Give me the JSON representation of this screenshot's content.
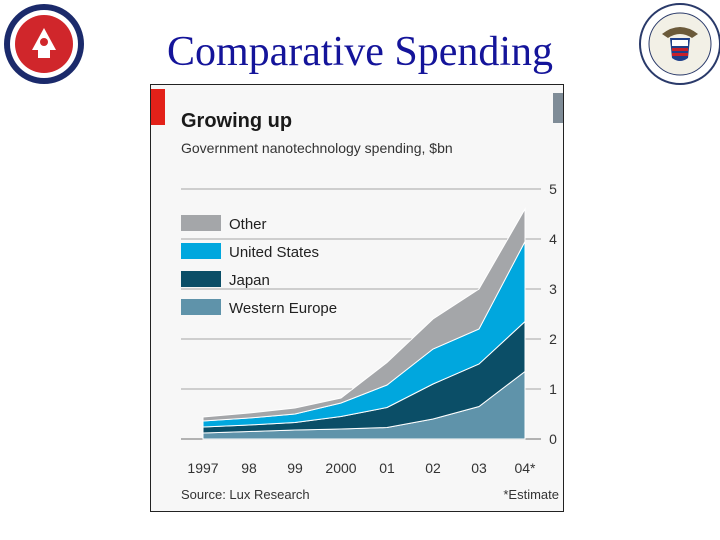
{
  "slide": {
    "title": "Comparative Spending"
  },
  "logos": {
    "left_seal": "Office of the Assistant Secretary of the Army",
    "right_seal": "Army Environmental Policy Institute"
  },
  "colors": {
    "title": "#14149a",
    "accent_bar": "#e32119",
    "badge": "#7f8c97",
    "other": "#a4a6a9",
    "united_states": "#00a7de",
    "japan": "#0b4e67",
    "western_europe": "#5f93aa",
    "grid": "#888888"
  },
  "chart_data": {
    "type": "area",
    "stacked": true,
    "title": "Growing up",
    "subtitle": "Government nanotechnology spending, $bn",
    "badge": "2",
    "categories": [
      "1997",
      "98",
      "99",
      "2000",
      "01",
      "02",
      "03",
      "04*"
    ],
    "series": [
      {
        "name": "Western Europe",
        "color_key": "western_europe",
        "values": [
          0.12,
          0.15,
          0.18,
          0.2,
          0.23,
          0.4,
          0.65,
          1.35
        ]
      },
      {
        "name": "Japan",
        "color_key": "japan",
        "values": [
          0.12,
          0.13,
          0.15,
          0.25,
          0.4,
          0.7,
          0.85,
          1.0
        ]
      },
      {
        "name": "United States",
        "color_key": "united_states",
        "values": [
          0.12,
          0.14,
          0.17,
          0.27,
          0.45,
          0.7,
          0.7,
          1.6
        ]
      },
      {
        "name": "Other",
        "color_key": "other",
        "values": [
          0.08,
          0.1,
          0.12,
          0.1,
          0.45,
          0.6,
          0.8,
          0.65
        ]
      }
    ],
    "legend_order": [
      "Other",
      "United States",
      "Japan",
      "Western Europe"
    ],
    "legend_position": "top-left",
    "y_ticks": [
      "0",
      "1",
      "2",
      "3",
      "4",
      "5"
    ],
    "ylim": [
      0,
      5
    ],
    "y_axis_side": "right",
    "grid": true,
    "source": "Source: Lux Research",
    "note": "*Estimate"
  }
}
